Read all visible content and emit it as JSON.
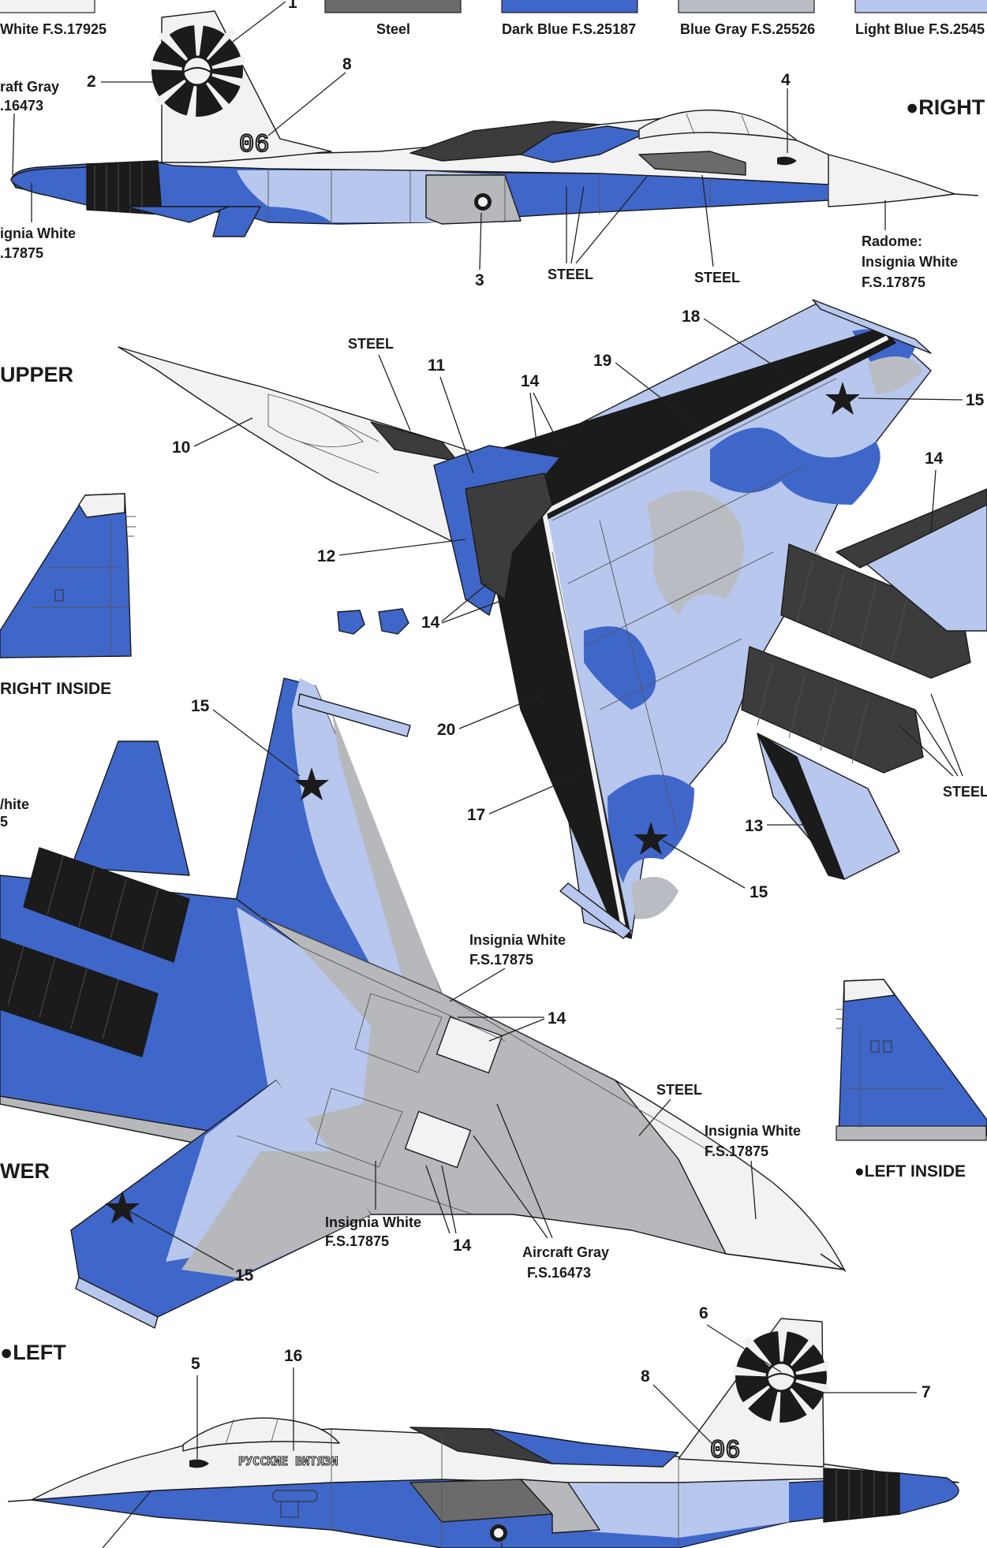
{
  "colors": {
    "insignia_white": "#f2f2f2",
    "steel": "#6b6b6b",
    "dark_blue": "#3f66c9",
    "blue_gray": "#b9bcc2",
    "light_blue": "#b7c7ee",
    "aircraft_gray": "#b6b8bc",
    "black": "#1b1b1b",
    "dark_gray": "#3c3c3c"
  },
  "swatches": [
    {
      "label": "White  F.S.17925",
      "color": "#f2f2f2"
    },
    {
      "label": "Steel",
      "color": "#6b6b6b"
    },
    {
      "label": "Dark Blue F.S.25187",
      "color": "#3f66c9"
    },
    {
      "label": "Blue Gray F.S.25526",
      "color": "#b9bcc2"
    },
    {
      "label": "Light Blue F.S.2545",
      "color": "#b7c7ee"
    }
  ],
  "views": {
    "right": "●RIGHT",
    "upper": "UPPER",
    "right_inside": "RIGHT INSIDE",
    "lower": "WER",
    "left_inside": "●LEFT INSIDE",
    "left": "●LEFT"
  },
  "tail_number": "06",
  "nose_text": "РУССКИЕ ВИТЯЗИ",
  "labels": {
    "aircraft_gray_1": "raft Gray",
    "aircraft_gray_2": ".16473",
    "insignia_white_left_1": "ignia White",
    "insignia_white_left_2": ".17875",
    "radome_1": "Radome:",
    "radome_2": "Insignia White",
    "radome_3": "F.S.17875",
    "steel_a": "STEEL",
    "steel_b": "STEEL",
    "steel_upper": "STEEL",
    "steel_right": "STEEL",
    "steel_lower": "STEEL",
    "white_frag_1": "/hite",
    "white_frag_2": "5",
    "iw_lower_top_1": "Insignia White",
    "iw_lower_top_2": "F.S.17875",
    "iw_lower_nose_1": "Insignia White",
    "iw_lower_nose_2": "F.S.17875",
    "iw_lower_bottom_1": "Insignia White",
    "iw_lower_bottom_2": "F.S.17875",
    "ag_lower_1": "Aircraft Gray",
    "ag_lower_2": "F.S.16473"
  },
  "callouts": {
    "n1": "1",
    "n2": "2",
    "n3": "3",
    "n4": "4",
    "n5": "5",
    "n6": "6",
    "n7": "7",
    "n8a": "8",
    "n8b": "8",
    "n10": "10",
    "n11": "11",
    "n12": "12",
    "n13": "13",
    "n14a": "14",
    "n14b": "14",
    "n14c": "14",
    "n14d": "14",
    "n14e": "14",
    "n15a": "15",
    "n15b": "15",
    "n15c": "15",
    "n15d": "15",
    "n16": "16",
    "n17": "17",
    "n18": "18",
    "n19": "19",
    "n20": "20"
  }
}
